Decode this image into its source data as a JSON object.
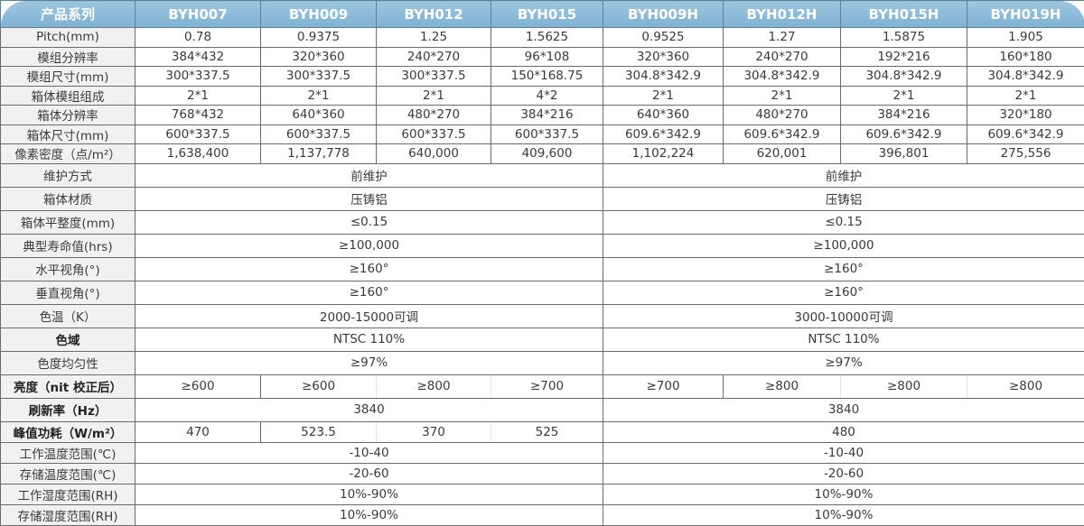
{
  "header": [
    "产品系列",
    "BYH007",
    "BYH009",
    "BYH012",
    "BYH015",
    "BYH009H",
    "BYH012H",
    "BYH015H",
    "BYH019H"
  ],
  "colors": {
    "header_bg": "#8bbcd9",
    "label_bg": "#f1f1f1",
    "border": "#6b6b6b"
  },
  "rows": [
    {
      "label": "Pitch(mm)",
      "cells": [
        "0.78",
        "0.9375",
        "1.25",
        "1.5625",
        "0.9525",
        "1.27",
        "1.5875",
        "1.905"
      ]
    },
    {
      "label": "模组分辨率",
      "cells": [
        "384*432",
        "320*360",
        "240*270",
        "96*108",
        "320*360",
        "240*270",
        "192*216",
        "160*180"
      ]
    },
    {
      "label": "模组尺寸(mm)",
      "cells": [
        "300*337.5",
        "300*337.5",
        "300*337.5",
        "150*168.75",
        "304.8*342.9",
        "304.8*342.9",
        "304.8*342.9",
        "304.8*342.9"
      ]
    },
    {
      "label": "箱体模组组成",
      "cells": [
        "2*1",
        "2*1",
        "2*1",
        "4*2",
        "2*1",
        "2*1",
        "2*1",
        "2*1"
      ]
    },
    {
      "label": "箱体分辨率",
      "cells": [
        "768*432",
        "640*360",
        "480*270",
        "384*216",
        "640*360",
        "480*270",
        "384*216",
        "320*180"
      ]
    },
    {
      "label": "箱体尺寸(mm)",
      "cells": [
        "600*337.5",
        "600*337.5",
        "600*337.5",
        "600*337.5",
        "609.6*342.9",
        "609.6*342.9",
        "609.6*342.9",
        "609.6*342.9"
      ]
    },
    {
      "label": "像素密度（点/m²）",
      "cells": [
        "1,638,400",
        "1,137,778",
        "640,000",
        "409,600",
        "1,102,224",
        "620,001",
        "396,801",
        "275,556"
      ]
    },
    {
      "label": "维护方式",
      "split": [
        "前维护",
        "前维护"
      ]
    },
    {
      "label": "箱体材质",
      "split": [
        "压铸铝",
        "压铸铝"
      ]
    },
    {
      "label": "箱体平整度(mm)",
      "split": [
        "≤0.15",
        "≤0.15"
      ]
    },
    {
      "label": "典型寿命值(hrs)",
      "split": [
        "≥100,000",
        "≥100,000"
      ]
    },
    {
      "label": "水平视角(°)",
      "split": [
        "≥160°",
        "≥160°"
      ]
    },
    {
      "label": "垂直视角(°)",
      "split": [
        "≥160°",
        "≥160°"
      ]
    },
    {
      "label": "色温（K）",
      "split": [
        "2000-15000可调",
        "3000-10000可调"
      ]
    },
    {
      "label": "色域",
      "bold": true,
      "split": [
        "NTSC 110%",
        "NTSC 110%"
      ]
    },
    {
      "label": "色度均匀性",
      "split": [
        "≥97%",
        "≥97%"
      ]
    },
    {
      "label": "亮度（nit 校正后）",
      "bold": true,
      "subcells": [
        "≥600",
        "≥600",
        "≥800",
        "≥700",
        "≥700",
        "≥800",
        "≥800",
        "≥800"
      ]
    },
    {
      "label": "刷新率（Hz）",
      "bold": true,
      "split": [
        "3840",
        "3840"
      ]
    },
    {
      "label": "峰值功耗（W/m²）",
      "bold": true,
      "mixed": [
        "470",
        "523.5",
        "370",
        "525"
      ],
      "right": "480"
    },
    {
      "label": "工作温度范围(℃)",
      "split": [
        "-10-40",
        "-10-40"
      ]
    },
    {
      "label": "存储温度范围(℃)",
      "split": [
        "-20-60",
        "-20-60"
      ]
    },
    {
      "label": "工作湿度范围(RH)",
      "split": [
        "10%-90%",
        "10%-90%"
      ]
    },
    {
      "label": "存储湿度范围(RH)",
      "split": [
        "10%-90%",
        "10%-90%"
      ]
    }
  ]
}
